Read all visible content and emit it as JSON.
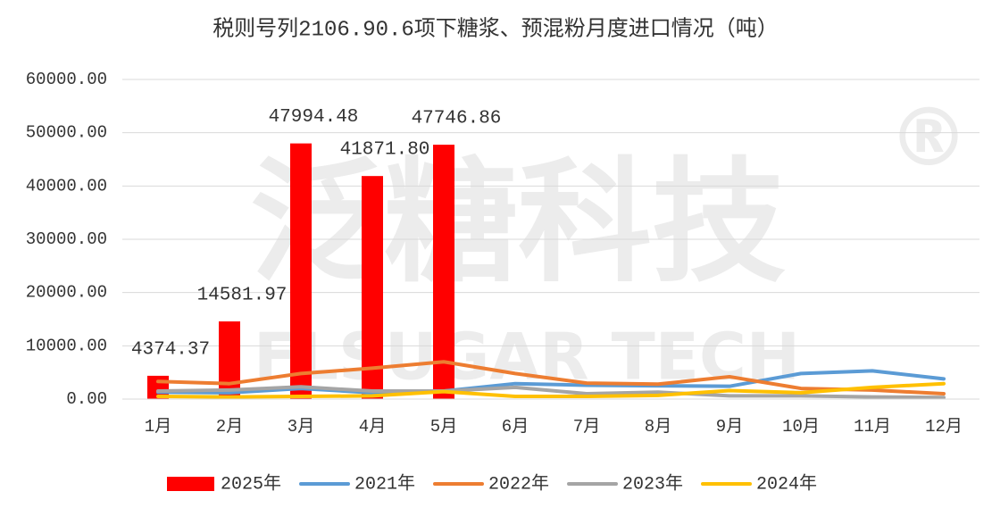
{
  "chart_data": {
    "type": "bar",
    "title": "税则号列2106.90.6项下糖浆、预混粉月度进口情况（吨）",
    "watermark": "泛糖科技",
    "watermark_mark": "®",
    "watermark_sub": "FLSUGAR TECH",
    "categories": [
      "1月",
      "2月",
      "3月",
      "4月",
      "5月",
      "6月",
      "7月",
      "8月",
      "9月",
      "10月",
      "11月",
      "12月"
    ],
    "ylim": [
      0,
      60000
    ],
    "yticks": [
      {
        "value": 0,
        "label": "0.00"
      },
      {
        "value": 10000,
        "label": "10000.00"
      },
      {
        "value": 20000,
        "label": "20000.00"
      },
      {
        "value": 30000,
        "label": "30000.00"
      },
      {
        "value": 40000,
        "label": "40000.00"
      },
      {
        "value": 50000,
        "label": "50000.00"
      },
      {
        "value": 60000,
        "label": "60000.00"
      }
    ],
    "grid": true,
    "legend": "bottom",
    "series": [
      {
        "name": "2025年",
        "type": "bar",
        "color": "#ff0000",
        "values": [
          4374.37,
          14581.97,
          47994.48,
          41871.8,
          47746.86,
          null,
          null,
          null,
          null,
          null,
          null,
          null
        ],
        "value_labels": [
          "4374.37",
          "14581.97",
          "47994.48",
          "41871.80",
          "47746.86",
          null,
          null,
          null,
          null,
          null,
          null,
          null
        ]
      },
      {
        "name": "2021年",
        "type": "line",
        "color": "#5b9bd5",
        "values": [
          1300,
          1200,
          2000,
          1200,
          1500,
          2900,
          2600,
          2500,
          2400,
          4800,
          5300,
          3800
        ]
      },
      {
        "name": "2022年",
        "type": "line",
        "color": "#ed7d31",
        "values": [
          3300,
          2900,
          4800,
          5800,
          7000,
          4800,
          3000,
          2800,
          4200,
          2000,
          1700,
          1000
        ]
      },
      {
        "name": "2023年",
        "type": "line",
        "color": "#a5a5a5",
        "values": [
          1500,
          1700,
          2300,
          1500,
          1500,
          2200,
          1000,
          1300,
          600,
          600,
          400,
          300
        ]
      },
      {
        "name": "2024年",
        "type": "line",
        "color": "#ffc000",
        "values": [
          500,
          400,
          500,
          600,
          1400,
          500,
          500,
          700,
          1600,
          1200,
          2200,
          2900
        ]
      }
    ]
  }
}
